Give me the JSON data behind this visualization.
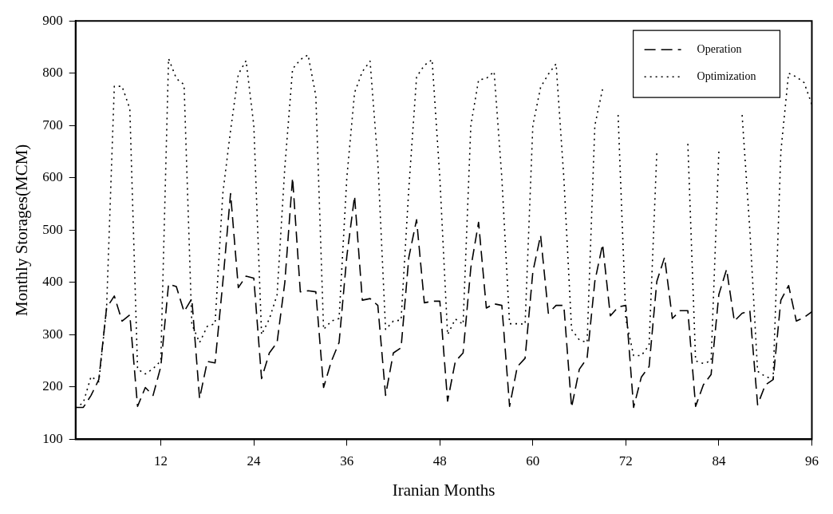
{
  "chart_data": {
    "type": "line",
    "xlabel": "Iranian Months",
    "ylabel": "Monthly Storages(MCM)",
    "x": [
      1,
      2,
      3,
      4,
      5,
      6,
      7,
      8,
      9,
      10,
      11,
      12,
      13,
      14,
      15,
      16,
      17,
      18,
      19,
      20,
      21,
      22,
      23,
      24,
      25,
      26,
      27,
      28,
      29,
      30,
      31,
      32,
      33,
      34,
      35,
      36,
      37,
      38,
      39,
      40,
      41,
      42,
      43,
      44,
      45,
      46,
      47,
      48,
      49,
      50,
      51,
      52,
      53,
      54,
      55,
      56,
      57,
      58,
      59,
      60,
      61,
      62,
      63,
      64,
      65,
      66,
      67,
      68,
      69,
      70,
      71,
      72,
      73,
      74,
      75,
      76,
      77,
      78,
      79,
      80,
      81,
      82,
      83,
      84,
      85,
      86,
      87,
      88,
      89,
      90,
      91,
      92,
      93,
      94,
      95,
      96
    ],
    "series": [
      {
        "name": "Operation",
        "color": "#000000",
        "line_style": "dashed",
        "values": [
          161,
          161,
          184,
          214,
          351,
          374,
          326,
          338,
          163,
          199,
          184,
          239,
          397,
          392,
          344,
          369,
          178,
          249,
          246,
          400,
          570,
          390,
          412,
          408,
          216,
          265,
          285,
          400,
          600,
          382,
          384,
          382,
          199,
          249,
          285,
          450,
          565,
          366,
          369,
          356,
          184,
          265,
          275,
          448,
          520,
          361,
          364,
          364,
          173,
          249,
          265,
          428,
          515,
          351,
          359,
          356,
          163,
          239,
          255,
          420,
          490,
          341,
          356,
          356,
          161,
          234,
          255,
          402,
          473,
          336,
          353,
          356,
          161,
          219,
          239,
          402,
          448,
          331,
          346,
          346,
          163,
          204,
          224,
          377,
          425,
          326,
          341,
          346,
          166,
          204,
          214,
          366,
          394,
          326,
          333,
          344
        ]
      },
      {
        "name": "Optimization",
        "color": "#000000",
        "line_style": "dotted",
        "values": [
          160,
          170,
          220,
          210,
          350,
          775,
          775,
          732,
          234,
          225,
          235,
          250,
          828,
          790,
          778,
          320,
          285,
          316,
          321,
          570,
          691,
          798,
          824,
          700,
          300,
          330,
          376,
          620,
          808,
          826,
          835,
          757,
          310,
          326,
          331,
          600,
          763,
          803,
          823,
          630,
          310,
          326,
          328,
          580,
          793,
          815,
          826,
          600,
          300,
          330,
          320,
          700,
          787,
          790,
          803,
          600,
          321,
          321,
          320,
          700,
          773,
          798,
          818,
          600,
          310,
          290,
          285,
          700,
          770,
          null,
          720,
          330,
          260,
          260,
          280,
          650,
          null,
          null,
          null,
          665,
          250,
          245,
          250,
          650,
          null,
          null,
          720,
          500,
          230,
          220,
          215,
          650,
          800,
          793,
          782,
          740
        ]
      }
    ],
    "xlim": [
      1,
      96
    ],
    "xticks": [
      12,
      24,
      36,
      48,
      60,
      72,
      84,
      96
    ],
    "ylim": [
      100,
      900
    ],
    "yticks": [
      100,
      200,
      300,
      400,
      500,
      600,
      700,
      800,
      900
    ],
    "grid": false,
    "legend": "top right",
    "marker": "none"
  }
}
